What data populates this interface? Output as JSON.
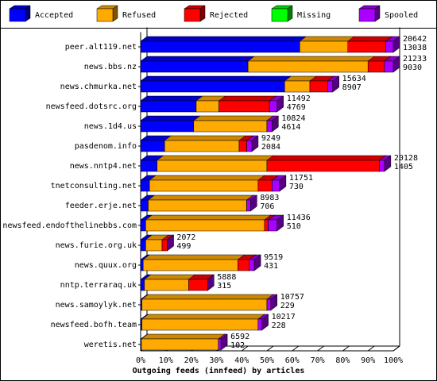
{
  "chart_data": {
    "type": "bar3d-stacked-horizontal",
    "xlabel": "Outgoing feeds (innfeed) by articles",
    "categories": [
      "peer.alt119.net",
      "news.bbs.nz",
      "news.chmurka.net",
      "newsfeed.dotsrc.org",
      "news.1d4.us",
      "pasdenom.info",
      "news.nntp4.net",
      "tnetconsulting.net",
      "feeder.erje.net",
      "newsfeed.endofthelinebbs.com",
      "news.furie.org.uk",
      "news.quux.org",
      "nntp.terraraq.uk",
      "news.samoylyk.net",
      "newsfeed.bofh.team",
      "weretis.net"
    ],
    "series": [
      {
        "name": "Accepted",
        "color": "#0000ff",
        "values": [
          63,
          42.5,
          57,
          22,
          21,
          9.5,
          6.5,
          3.5,
          3,
          2,
          2,
          1,
          1.5,
          0.5,
          0.5,
          0.3
        ]
      },
      {
        "name": "Refused",
        "color": "#ffaa00",
        "values": [
          19,
          47.5,
          10,
          9,
          29,
          29.5,
          43.5,
          43,
          39,
          47,
          6.5,
          37.5,
          17.5,
          49.5,
          46,
          30.5
        ]
      },
      {
        "name": "Rejected",
        "color": "#ff0000",
        "values": [
          15,
          6.5,
          7,
          20,
          0,
          3,
          44.5,
          5.5,
          0,
          1.5,
          2,
          4.5,
          7.5,
          0,
          0,
          0
        ]
      },
      {
        "name": "Missing",
        "color": "#00ff00",
        "values": [
          0,
          0,
          0,
          0,
          0,
          0,
          0,
          0,
          0,
          0,
          0,
          0,
          0,
          0,
          0,
          0
        ]
      },
      {
        "name": "Spooled",
        "color": "#aa00ff",
        "values": [
          3,
          3.5,
          2,
          3,
          2,
          2,
          2,
          3,
          1.5,
          3.5,
          0,
          2,
          0,
          1.5,
          1.5,
          1
        ]
      }
    ],
    "row_labels": [
      [
        20642,
        13038
      ],
      [
        21233,
        9030
      ],
      [
        15634,
        8907
      ],
      [
        11492,
        4769
      ],
      [
        10824,
        4614
      ],
      [
        9249,
        2084
      ],
      [
        20128,
        1405
      ],
      [
        11751,
        730
      ],
      [
        8983,
        706
      ],
      [
        11436,
        510
      ],
      [
        2072,
        499
      ],
      [
        9519,
        431
      ],
      [
        5888,
        315
      ],
      [
        10757,
        229
      ],
      [
        10217,
        228
      ],
      [
        6592,
        102
      ]
    ],
    "xlim": [
      0,
      100
    ],
    "xticks": [
      {
        "value": 0,
        "label": "0%"
      },
      {
        "value": 10,
        "label": "10%"
      },
      {
        "value": 20,
        "label": "20%"
      },
      {
        "value": 30,
        "label": "30%"
      },
      {
        "value": 40,
        "label": "40%"
      },
      {
        "value": 50,
        "label": "50%"
      },
      {
        "value": 60,
        "label": "60%"
      },
      {
        "value": 70,
        "label": "70%"
      },
      {
        "value": 80,
        "label": "80%"
      },
      {
        "value": 90,
        "label": "90%"
      },
      {
        "value": 100,
        "label": "100%"
      }
    ]
  }
}
